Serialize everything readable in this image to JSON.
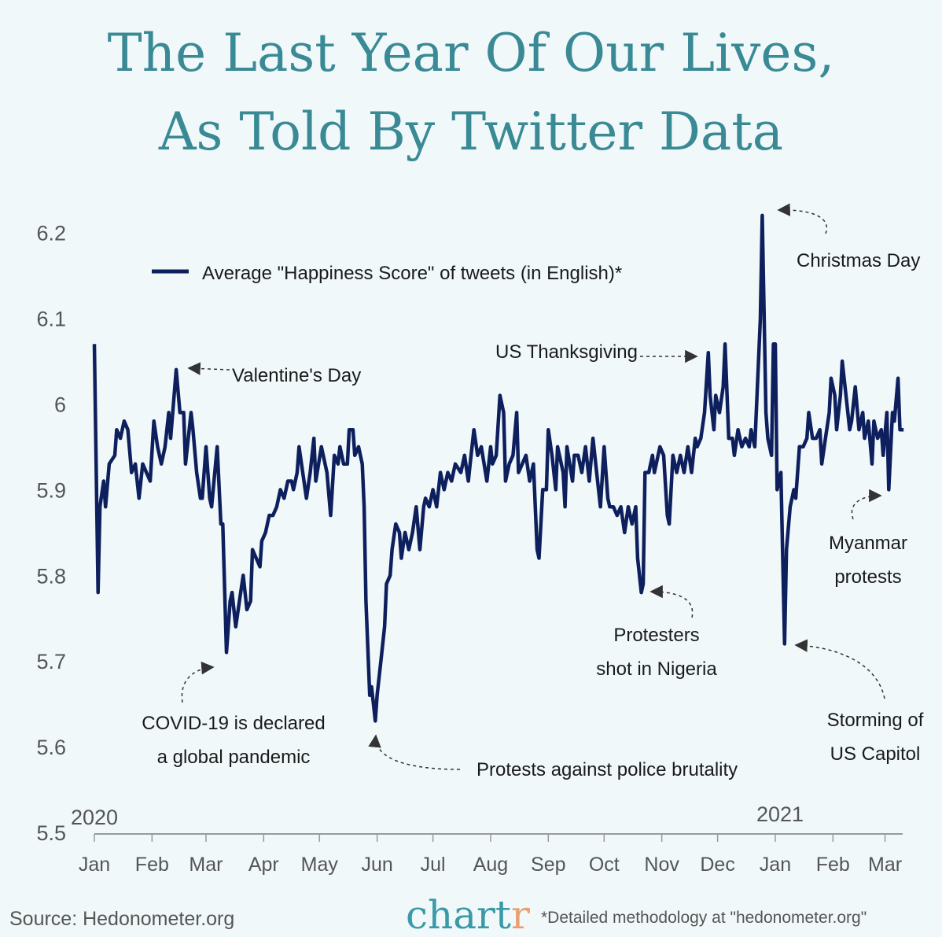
{
  "title_line1": "The Last Year Of Our Lives,",
  "title_line2": "As Told By Twitter Data",
  "colors": {
    "title": "#3a8a96",
    "line": "#0d1f5c",
    "background": "#f0f8fa",
    "logo_accent": "#e8a070"
  },
  "footer": {
    "source": "Source: Hedonometer.org",
    "logo": "chart",
    "logo_accent": "r",
    "note": "*Detailed methodology at \"hedonometer.org\""
  },
  "chart_data": {
    "type": "line",
    "title": "",
    "xlabel": "",
    "ylabel": "",
    "ylim": [
      5.5,
      6.2
    ],
    "y_ticks": [
      "5.5",
      "5.6",
      "5.7",
      "5.8",
      "5.9",
      "6",
      "6.1",
      "6.2"
    ],
    "x_ticks": [
      "Jan",
      "Feb",
      "Mar",
      "Apr",
      "May",
      "Jun",
      "Jul",
      "Aug",
      "Sep",
      "Oct",
      "Nov",
      "Dec",
      "Jan",
      "Feb",
      "Mar"
    ],
    "x_tick_dates": [
      "2020-01-01",
      "2020-02-01",
      "2020-03-01",
      "2020-04-01",
      "2020-05-01",
      "2020-06-01",
      "2020-07-01",
      "2020-08-01",
      "2020-09-01",
      "2020-10-01",
      "2020-11-01",
      "2020-12-01",
      "2021-01-01",
      "2021-02-01",
      "2021-03-01"
    ],
    "year_labels": [
      "2020",
      "2021"
    ],
    "grid": false,
    "legend": {
      "position": "top-left",
      "label": "Average \"Happiness Score\" of tweets (in English)*"
    },
    "series": [
      {
        "name": "Average \"Happiness Score\" of tweets (in English)*",
        "points": [
          [
            "2020-01-01",
            6.07
          ],
          [
            "2020-01-03",
            5.78
          ],
          [
            "2020-01-04",
            5.88
          ],
          [
            "2020-01-06",
            5.91
          ],
          [
            "2020-01-07",
            5.88
          ],
          [
            "2020-01-09",
            5.93
          ],
          [
            "2020-01-12",
            5.94
          ],
          [
            "2020-01-13",
            5.97
          ],
          [
            "2020-01-15",
            5.96
          ],
          [
            "2020-01-17",
            5.98
          ],
          [
            "2020-01-19",
            5.97
          ],
          [
            "2020-01-21",
            5.92
          ],
          [
            "2020-01-23",
            5.93
          ],
          [
            "2020-01-25",
            5.89
          ],
          [
            "2020-01-27",
            5.93
          ],
          [
            "2020-01-29",
            5.92
          ],
          [
            "2020-01-31",
            5.91
          ],
          [
            "2020-02-02",
            5.98
          ],
          [
            "2020-02-04",
            5.95
          ],
          [
            "2020-02-06",
            5.93
          ],
          [
            "2020-02-08",
            5.95
          ],
          [
            "2020-02-10",
            5.99
          ],
          [
            "2020-02-11",
            5.96
          ],
          [
            "2020-02-14",
            6.04
          ],
          [
            "2020-02-16",
            5.99
          ],
          [
            "2020-02-18",
            5.99
          ],
          [
            "2020-02-19",
            5.93
          ],
          [
            "2020-02-22",
            5.99
          ],
          [
            "2020-02-23",
            5.97
          ],
          [
            "2020-02-25",
            5.92
          ],
          [
            "2020-02-27",
            5.89
          ],
          [
            "2020-02-28",
            5.89
          ],
          [
            "2020-03-01",
            5.95
          ],
          [
            "2020-03-03",
            5.89
          ],
          [
            "2020-03-04",
            5.88
          ],
          [
            "2020-03-07",
            5.95
          ],
          [
            "2020-03-09",
            5.86
          ],
          [
            "2020-03-10",
            5.86
          ],
          [
            "2020-03-12",
            5.71
          ],
          [
            "2020-03-14",
            5.77
          ],
          [
            "2020-03-15",
            5.78
          ],
          [
            "2020-03-17",
            5.74
          ],
          [
            "2020-03-19",
            5.77
          ],
          [
            "2020-03-21",
            5.8
          ],
          [
            "2020-03-23",
            5.76
          ],
          [
            "2020-03-25",
            5.77
          ],
          [
            "2020-03-26",
            5.83
          ],
          [
            "2020-03-28",
            5.82
          ],
          [
            "2020-03-30",
            5.81
          ],
          [
            "2020-03-31",
            5.84
          ],
          [
            "2020-04-02",
            5.85
          ],
          [
            "2020-04-04",
            5.87
          ],
          [
            "2020-04-06",
            5.87
          ],
          [
            "2020-04-08",
            5.88
          ],
          [
            "2020-04-10",
            5.9
          ],
          [
            "2020-04-12",
            5.89
          ],
          [
            "2020-04-14",
            5.91
          ],
          [
            "2020-04-16",
            5.91
          ],
          [
            "2020-04-17",
            5.9
          ],
          [
            "2020-04-19",
            5.92
          ],
          [
            "2020-04-20",
            5.95
          ],
          [
            "2020-04-22",
            5.92
          ],
          [
            "2020-04-24",
            5.89
          ],
          [
            "2020-04-26",
            5.92
          ],
          [
            "2020-04-28",
            5.96
          ],
          [
            "2020-04-29",
            5.91
          ],
          [
            "2020-05-02",
            5.95
          ],
          [
            "2020-05-05",
            5.92
          ],
          [
            "2020-05-07",
            5.87
          ],
          [
            "2020-05-09",
            5.94
          ],
          [
            "2020-05-11",
            5.93
          ],
          [
            "2020-05-12",
            5.95
          ],
          [
            "2020-05-14",
            5.93
          ],
          [
            "2020-05-16",
            5.93
          ],
          [
            "2020-05-17",
            5.97
          ],
          [
            "2020-05-19",
            5.97
          ],
          [
            "2020-05-20",
            5.94
          ],
          [
            "2020-05-22",
            5.95
          ],
          [
            "2020-05-23",
            5.94
          ],
          [
            "2020-05-24",
            5.93
          ],
          [
            "2020-05-25",
            5.88
          ],
          [
            "2020-05-26",
            5.77
          ],
          [
            "2020-05-28",
            5.66
          ],
          [
            "2020-05-29",
            5.67
          ],
          [
            "2020-05-31",
            5.63
          ],
          [
            "2020-06-01",
            5.66
          ],
          [
            "2020-06-03",
            5.7
          ],
          [
            "2020-06-05",
            5.74
          ],
          [
            "2020-06-06",
            5.79
          ],
          [
            "2020-06-08",
            5.8
          ],
          [
            "2020-06-09",
            5.83
          ],
          [
            "2020-06-11",
            5.86
          ],
          [
            "2020-06-13",
            5.85
          ],
          [
            "2020-06-14",
            5.82
          ],
          [
            "2020-06-16",
            5.85
          ],
          [
            "2020-06-18",
            5.83
          ],
          [
            "2020-06-20",
            5.85
          ],
          [
            "2020-06-22",
            5.88
          ],
          [
            "2020-06-24",
            5.83
          ],
          [
            "2020-06-26",
            5.88
          ],
          [
            "2020-06-27",
            5.89
          ],
          [
            "2020-06-29",
            5.88
          ],
          [
            "2020-07-01",
            5.9
          ],
          [
            "2020-07-03",
            5.88
          ],
          [
            "2020-07-05",
            5.92
          ],
          [
            "2020-07-07",
            5.9
          ],
          [
            "2020-07-09",
            5.92
          ],
          [
            "2020-07-11",
            5.91
          ],
          [
            "2020-07-13",
            5.93
          ],
          [
            "2020-07-16",
            5.92
          ],
          [
            "2020-07-18",
            5.94
          ],
          [
            "2020-07-20",
            5.91
          ],
          [
            "2020-07-21",
            5.93
          ],
          [
            "2020-07-23",
            5.97
          ],
          [
            "2020-07-25",
            5.94
          ],
          [
            "2020-07-27",
            5.95
          ],
          [
            "2020-07-30",
            5.91
          ],
          [
            "2020-08-01",
            5.95
          ],
          [
            "2020-08-02",
            5.93
          ],
          [
            "2020-08-04",
            5.94
          ],
          [
            "2020-08-06",
            6.01
          ],
          [
            "2020-08-08",
            5.99
          ],
          [
            "2020-08-09",
            5.91
          ],
          [
            "2020-08-11",
            5.93
          ],
          [
            "2020-08-13",
            5.94
          ],
          [
            "2020-08-15",
            5.99
          ],
          [
            "2020-08-16",
            5.92
          ],
          [
            "2020-08-18",
            5.93
          ],
          [
            "2020-08-20",
            5.94
          ],
          [
            "2020-08-22",
            5.91
          ],
          [
            "2020-08-24",
            5.93
          ],
          [
            "2020-08-26",
            5.83
          ],
          [
            "2020-08-27",
            5.82
          ],
          [
            "2020-08-29",
            5.9
          ],
          [
            "2020-08-31",
            5.9
          ],
          [
            "2020-09-01",
            5.97
          ],
          [
            "2020-09-03",
            5.94
          ],
          [
            "2020-09-05",
            5.9
          ],
          [
            "2020-09-06",
            5.95
          ],
          [
            "2020-09-09",
            5.92
          ],
          [
            "2020-09-10",
            5.88
          ],
          [
            "2020-09-11",
            5.95
          ],
          [
            "2020-09-14",
            5.91
          ],
          [
            "2020-09-15",
            5.94
          ],
          [
            "2020-09-17",
            5.94
          ],
          [
            "2020-09-19",
            5.92
          ],
          [
            "2020-09-21",
            5.95
          ],
          [
            "2020-09-23",
            5.91
          ],
          [
            "2020-09-25",
            5.96
          ],
          [
            "2020-09-27",
            5.92
          ],
          [
            "2020-09-29",
            5.88
          ],
          [
            "2020-10-01",
            5.95
          ],
          [
            "2020-10-03",
            5.89
          ],
          [
            "2020-10-04",
            5.88
          ],
          [
            "2020-10-06",
            5.88
          ],
          [
            "2020-10-08",
            5.87
          ],
          [
            "2020-10-10",
            5.88
          ],
          [
            "2020-10-12",
            5.85
          ],
          [
            "2020-10-14",
            5.88
          ],
          [
            "2020-10-16",
            5.86
          ],
          [
            "2020-10-18",
            5.88
          ],
          [
            "2020-10-19",
            5.82
          ],
          [
            "2020-10-21",
            5.78
          ],
          [
            "2020-10-22",
            5.79
          ],
          [
            "2020-10-23",
            5.92
          ],
          [
            "2020-10-25",
            5.92
          ],
          [
            "2020-10-27",
            5.94
          ],
          [
            "2020-10-28",
            5.92
          ],
          [
            "2020-10-30",
            5.94
          ],
          [
            "2020-10-31",
            5.95
          ],
          [
            "2020-11-02",
            5.94
          ],
          [
            "2020-11-04",
            5.87
          ],
          [
            "2020-11-05",
            5.86
          ],
          [
            "2020-11-07",
            5.94
          ],
          [
            "2020-11-09",
            5.92
          ],
          [
            "2020-11-11",
            5.94
          ],
          [
            "2020-11-13",
            5.92
          ],
          [
            "2020-11-15",
            5.95
          ],
          [
            "2020-11-17",
            5.92
          ],
          [
            "2020-11-19",
            5.96
          ],
          [
            "2020-11-20",
            5.95
          ],
          [
            "2020-11-22",
            5.96
          ],
          [
            "2020-11-24",
            5.99
          ],
          [
            "2020-11-26",
            6.06
          ],
          [
            "2020-11-27",
            6.01
          ],
          [
            "2020-11-29",
            5.97
          ],
          [
            "2020-11-30",
            6.01
          ],
          [
            "2020-12-02",
            5.99
          ],
          [
            "2020-12-04",
            6.02
          ],
          [
            "2020-12-05",
            6.07
          ],
          [
            "2020-12-07",
            5.96
          ],
          [
            "2020-12-09",
            5.96
          ],
          [
            "2020-12-10",
            5.94
          ],
          [
            "2020-12-12",
            5.97
          ],
          [
            "2020-12-14",
            5.95
          ],
          [
            "2020-12-16",
            5.96
          ],
          [
            "2020-12-18",
            5.95
          ],
          [
            "2020-12-19",
            5.97
          ],
          [
            "2020-12-21",
            5.95
          ],
          [
            "2020-12-24",
            6.1
          ],
          [
            "2020-12-25",
            6.22
          ],
          [
            "2020-12-27",
            5.99
          ],
          [
            "2020-12-28",
            5.96
          ],
          [
            "2020-12-30",
            5.94
          ],
          [
            "2020-12-31",
            6.07
          ],
          [
            "2021-01-01",
            6.07
          ],
          [
            "2021-01-02",
            5.9
          ],
          [
            "2021-01-04",
            5.92
          ],
          [
            "2021-01-06",
            5.72
          ],
          [
            "2021-01-07",
            5.83
          ],
          [
            "2021-01-09",
            5.88
          ],
          [
            "2021-01-11",
            5.9
          ],
          [
            "2021-01-12",
            5.89
          ],
          [
            "2021-01-14",
            5.95
          ],
          [
            "2021-01-16",
            5.95
          ],
          [
            "2021-01-18",
            5.96
          ],
          [
            "2021-01-19",
            5.99
          ],
          [
            "2021-01-21",
            5.96
          ],
          [
            "2021-01-23",
            5.96
          ],
          [
            "2021-01-25",
            5.97
          ],
          [
            "2021-01-26",
            5.93
          ],
          [
            "2021-01-28",
            5.96
          ],
          [
            "2021-01-30",
            5.99
          ],
          [
            "2021-01-31",
            6.03
          ],
          [
            "2021-02-02",
            6.01
          ],
          [
            "2021-02-03",
            5.97
          ],
          [
            "2021-02-05",
            6.01
          ],
          [
            "2021-02-06",
            6.05
          ],
          [
            "2021-02-08",
            6.01
          ],
          [
            "2021-02-10",
            5.97
          ],
          [
            "2021-02-11",
            5.98
          ],
          [
            "2021-02-13",
            6.02
          ],
          [
            "2021-02-15",
            5.97
          ],
          [
            "2021-02-17",
            5.99
          ],
          [
            "2021-02-18",
            5.96
          ],
          [
            "2021-02-20",
            5.98
          ],
          [
            "2021-02-22",
            5.93
          ],
          [
            "2021-02-23",
            5.98
          ],
          [
            "2021-02-25",
            5.96
          ],
          [
            "2021-02-27",
            5.97
          ],
          [
            "2021-02-28",
            5.94
          ],
          [
            "2021-03-02",
            5.99
          ],
          [
            "2021-03-03",
            5.9
          ],
          [
            "2021-03-05",
            5.99
          ],
          [
            "2021-03-06",
            5.98
          ],
          [
            "2021-03-08",
            6.03
          ],
          [
            "2021-03-09",
            5.97
          ],
          [
            "2021-03-11",
            5.97
          ]
        ]
      }
    ],
    "annotations": [
      {
        "text": [
          "Valentine's Day"
        ],
        "date": "2020-02-14"
      },
      {
        "text": [
          "COVID-19 is declared",
          "a global pandemic"
        ],
        "date": "2020-03-12"
      },
      {
        "text": [
          "Protests against police brutality"
        ],
        "date": "2020-05-31"
      },
      {
        "text": [
          "Protesters",
          "shot in Nigeria"
        ],
        "date": "2020-10-21"
      },
      {
        "text": [
          "US Thanksgiving"
        ],
        "date": "2020-11-26"
      },
      {
        "text": [
          "Christmas Day"
        ],
        "date": "2020-12-25"
      },
      {
        "text": [
          "Storming of",
          "US Capitol"
        ],
        "date": "2021-01-06"
      },
      {
        "text": [
          "Myanmar",
          "protests"
        ],
        "date": "2021-03-03"
      }
    ]
  }
}
